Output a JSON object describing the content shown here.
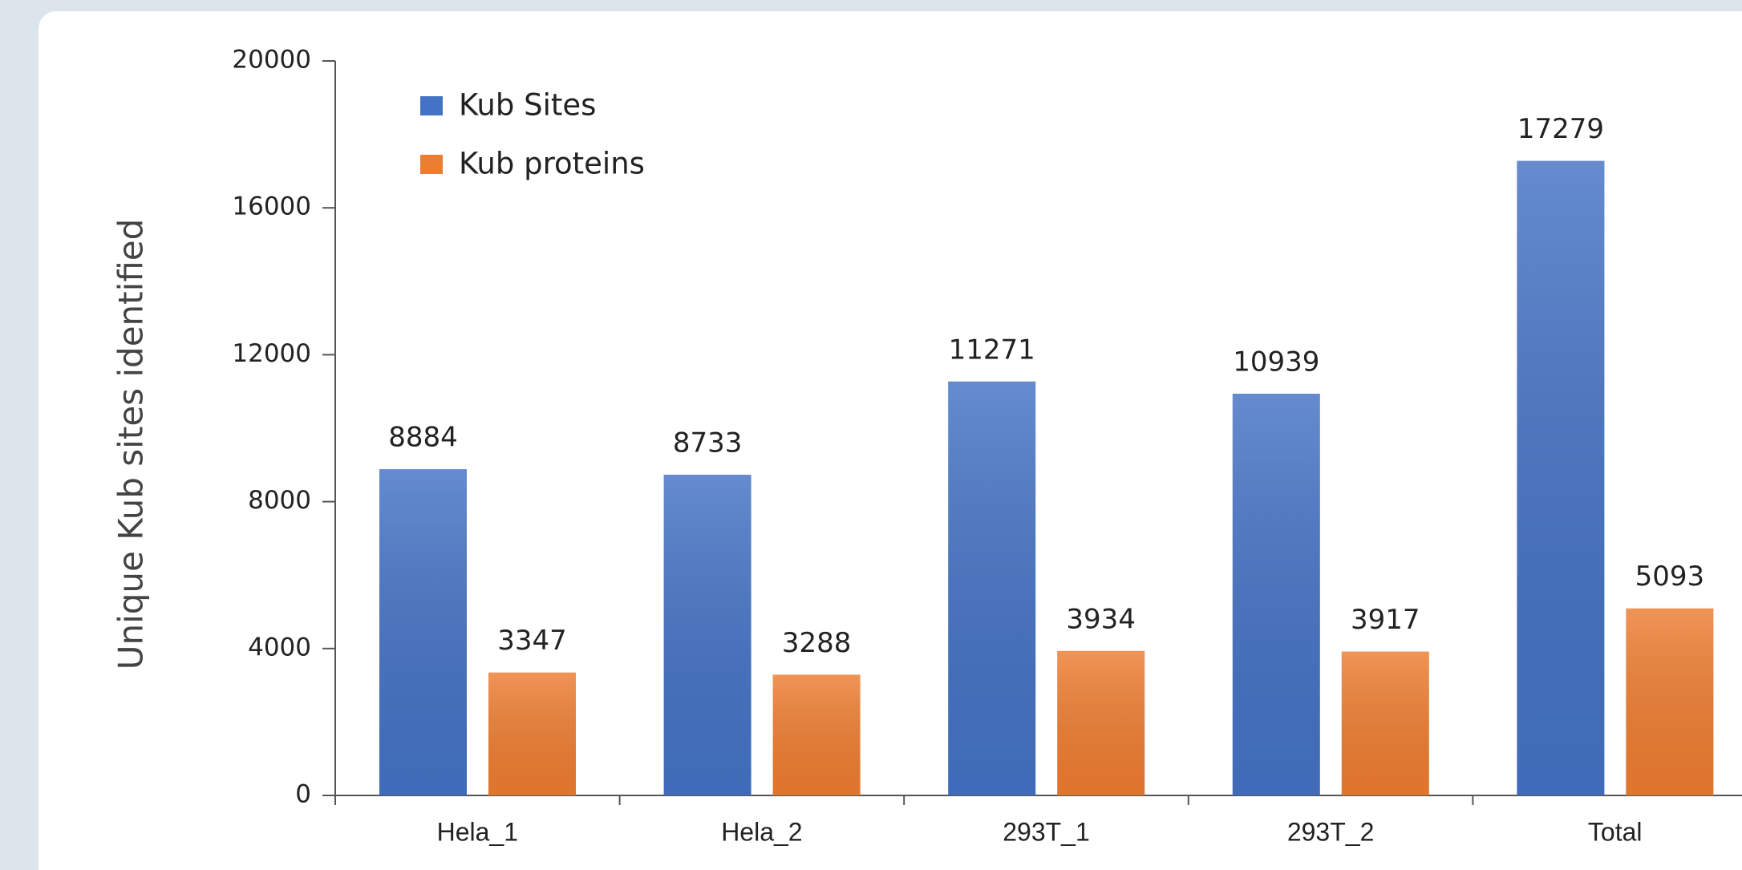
{
  "chart_data": {
    "type": "bar",
    "y_label": "Unique Kub sites identified",
    "categories": [
      "Hela_1",
      "Hela_2",
      "293T_1",
      "293T_2",
      "Total"
    ],
    "series": [
      {
        "name": "Kub Sites",
        "color": "#4472c4",
        "values": [
          8884,
          8733,
          11271,
          10939,
          17279
        ]
      },
      {
        "name": "Kub proteins",
        "color": "#ed7d31",
        "values": [
          3347,
          3288,
          3934,
          3917,
          5093
        ]
      }
    ],
    "ylim": [
      0,
      20000
    ],
    "yticks": [
      0,
      4000,
      8000,
      12000,
      16000,
      20000
    ],
    "legend": "upper left"
  }
}
